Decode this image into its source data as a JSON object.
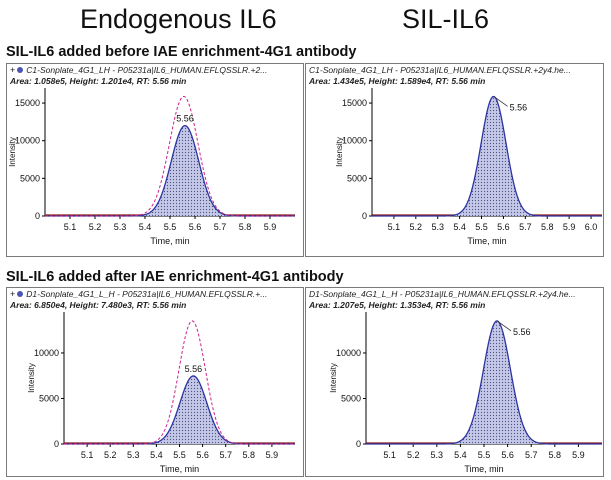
{
  "headers": {
    "left": "Endogenous IL6",
    "right": "SIL-IL6"
  },
  "sections": [
    {
      "title": "SIL-IL6 added before IAE enrichment-4G1 antibody"
    },
    {
      "title": "SIL-IL6 added after IAE enrichment-4G1 antibody"
    }
  ],
  "icons": {
    "expand": "plus-icon",
    "series": "blue-dot-icon"
  },
  "colors": {
    "fill": "#c4c8e6",
    "stroke": "#2c34a0",
    "overlay": "#d0208e",
    "baseline": "#8b1a1a"
  },
  "chart_data": [
    {
      "type": "area",
      "title": "C1-Sonplate_4G1_LH - P05231a|IL6_HUMAN.EFLQSSLR.+2...",
      "info": "Area: 1.058e5, Height: 1.201e4, RT: 5.56 min",
      "xlabel": "Time, min",
      "ylabel": "Intensity",
      "xlim": [
        5.0,
        6.0
      ],
      "ylim": [
        0,
        17000
      ],
      "x_ticks": [
        "5.1",
        "5.2",
        "5.3",
        "5.4",
        "5.5",
        "5.6",
        "5.7",
        "5.8",
        "5.9"
      ],
      "x_tick_values": [
        5.1,
        5.2,
        5.3,
        5.4,
        5.5,
        5.6,
        5.7,
        5.8,
        5.9
      ],
      "y_ticks": [
        "0",
        "5000",
        "10000",
        "15000"
      ],
      "y_tick_values": [
        0,
        5000,
        10000,
        15000
      ],
      "peak_label": "5.56",
      "series": [
        {
          "rt": 5.56,
          "height": 12010,
          "sigma": 0.055
        },
        {
          "rt": 5.555,
          "height": 15890,
          "sigma": 0.057,
          "overlay": true
        }
      ]
    },
    {
      "type": "area",
      "title": "C1-Sonplate_4G1_LH - P05231a|IL6_HUMAN.EFLQSSLR.+2y4.he...",
      "info": "Area: 1.434e5, Height: 1.589e4, RT: 5.56 min",
      "xlabel": "Time, min",
      "ylabel": "Intensity",
      "xlim": [
        5.0,
        6.05
      ],
      "ylim": [
        0,
        17000
      ],
      "x_ticks": [
        "5.1",
        "5.2",
        "5.3",
        "5.4",
        "5.5",
        "5.6",
        "5.7",
        "5.8",
        "5.9",
        "6.0"
      ],
      "x_tick_values": [
        5.1,
        5.2,
        5.3,
        5.4,
        5.5,
        5.6,
        5.7,
        5.8,
        5.9,
        6.0
      ],
      "y_ticks": [
        "0",
        "5000",
        "10000",
        "15000"
      ],
      "y_tick_values": [
        0,
        5000,
        10000,
        15000
      ],
      "peak_label": "5.56",
      "series": [
        {
          "rt": 5.555,
          "height": 15890,
          "sigma": 0.057
        }
      ]
    },
    {
      "type": "area",
      "title": "D1-Sonplate_4G1_L_H - P05231a|IL6_HUMAN.EFLQSSLR.+...",
      "info": "Area: 6.850e4, Height: 7.480e3, RT: 5.56 min",
      "xlabel": "Time, min",
      "ylabel": "Intensity",
      "xlim": [
        5.0,
        6.0
      ],
      "ylim": [
        0,
        14500
      ],
      "x_ticks": [
        "5.1",
        "5.2",
        "5.3",
        "5.4",
        "5.5",
        "5.6",
        "5.7",
        "5.8",
        "5.9"
      ],
      "x_tick_values": [
        5.1,
        5.2,
        5.3,
        5.4,
        5.5,
        5.6,
        5.7,
        5.8,
        5.9
      ],
      "y_ticks": [
        "0",
        "5000",
        "10000"
      ],
      "y_tick_values": [
        0,
        5000,
        10000
      ],
      "peak_label": "5.56",
      "series": [
        {
          "rt": 5.56,
          "height": 7480,
          "sigma": 0.058
        },
        {
          "rt": 5.555,
          "height": 13530,
          "sigma": 0.057,
          "overlay": true
        }
      ]
    },
    {
      "type": "area",
      "title": "D1-Sonplate_4G1_L_H - P05231a|IL6_HUMAN.EFLQSSLR.+2y4.he...",
      "info": "Area: 1.207e5, Height: 1.353e4, RT: 5.56 min",
      "xlabel": "Time, min",
      "ylabel": "Intensity",
      "xlim": [
        5.0,
        6.0
      ],
      "ylim": [
        0,
        14500
      ],
      "x_ticks": [
        "5.1",
        "5.2",
        "5.3",
        "5.4",
        "5.5",
        "5.6",
        "5.7",
        "5.8",
        "5.9"
      ],
      "x_tick_values": [
        5.1,
        5.2,
        5.3,
        5.4,
        5.5,
        5.6,
        5.7,
        5.8,
        5.9
      ],
      "y_ticks": [
        "0",
        "5000",
        "10000"
      ],
      "y_tick_values": [
        0,
        5000,
        10000
      ],
      "peak_label": "5.56",
      "series": [
        {
          "rt": 5.555,
          "height": 13530,
          "sigma": 0.057
        }
      ]
    }
  ]
}
